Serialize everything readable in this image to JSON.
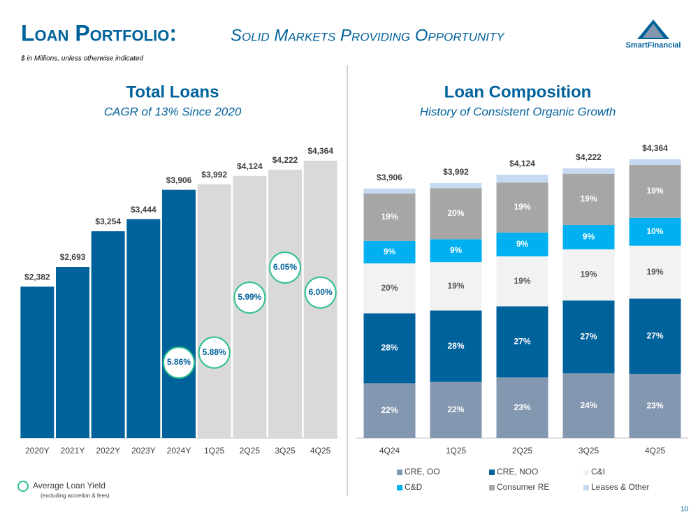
{
  "slide": {
    "title": "Loan Portfolio:",
    "title_rest": "Solid Markets Providing Opportunity",
    "note": "$ in Millions, unless otherwise indicated",
    "logo": "SmartFinancial",
    "page": "10"
  },
  "chart_data": [
    {
      "type": "bar",
      "title": "Total Loans",
      "subtitle": "CAGR of 13% Since 2020",
      "categories": [
        "2020Y",
        "2021Y",
        "2022Y",
        "2023Y",
        "2024Y",
        "1Q25",
        "2Q25",
        "3Q25",
        "4Q25"
      ],
      "values": [
        2382,
        2693,
        3254,
        3444,
        3906,
        3992,
        4124,
        4222,
        4364
      ],
      "value_labels": [
        "$2,382",
        "$2,693",
        "$3,254",
        "$3,444",
        "$3,906",
        "$3,992",
        "$4,124",
        "$4,222",
        "$4,364"
      ],
      "colors": [
        "#00629b",
        "#00629b",
        "#00629b",
        "#00629b",
        "#00629b",
        "#d9d9d9",
        "#d9d9d9",
        "#d9d9d9",
        "#d9d9d9"
      ],
      "annotations": {
        "name": "Average Loan Yield",
        "note": "(excluding accretion & fees)",
        "color": "#2ec08f",
        "values": [
          null,
          null,
          null,
          null,
          5.86,
          5.88,
          5.99,
          6.05,
          6.0
        ],
        "value_labels": [
          null,
          null,
          null,
          null,
          "5.86%",
          "5.88%",
          "5.99%",
          "6.05%",
          "6.00%"
        ]
      }
    },
    {
      "type": "stacked_bar",
      "title": "Loan Composition",
      "subtitle": "History of Consistent Organic Growth",
      "categories": [
        "4Q24",
        "1Q25",
        "2Q25",
        "3Q25",
        "4Q25"
      ],
      "series": [
        {
          "name": "CRE, OO",
          "color": "#8497b0",
          "values": [
            22,
            22,
            23,
            24,
            23
          ],
          "value_labels": [
            "22%",
            "22%",
            "23%",
            "24%",
            "23%"
          ]
        },
        {
          "name": "CRE, NOO",
          "color": "#00629b",
          "values": [
            28,
            28,
            27,
            27,
            27
          ],
          "value_labels": [
            "28%",
            "28%",
            "27%",
            "27%",
            "27%"
          ]
        },
        {
          "name": "C&I",
          "color": "#f2f2f2",
          "values": [
            20,
            19,
            19,
            19,
            19
          ],
          "value_labels": [
            "20%",
            "19%",
            "19%",
            "19%",
            "19%"
          ]
        },
        {
          "name": "C&D",
          "color": "#00b0f0",
          "values": [
            9,
            9,
            9,
            9,
            10
          ],
          "value_labels": [
            "9%",
            "9%",
            "9%",
            "9%",
            "10%"
          ]
        },
        {
          "name": "Consumer RE",
          "color": "#a6a6a6",
          "values": [
            19,
            20,
            19,
            19,
            19
          ],
          "value_labels": [
            "19%",
            "20%",
            "19%",
            "19%",
            "19%"
          ]
        },
        {
          "name": "Leases & Other",
          "color": "#c5d9f1",
          "values": [
            2,
            2,
            3,
            2,
            2
          ]
        }
      ],
      "totals": {
        "values": [
          3906,
          3992,
          4124,
          4222,
          4364
        ],
        "value_labels": [
          "$3,906",
          "$3,992",
          "$4,124",
          "$4,222",
          "$4,364"
        ]
      }
    }
  ]
}
